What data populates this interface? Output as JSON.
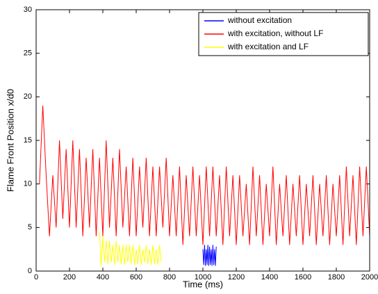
{
  "chart_data": {
    "type": "line",
    "xlabel": "Time (ms)",
    "ylabel": "Flame Front Position x/d0",
    "xlim": [
      0,
      2000
    ],
    "xticks": [
      0,
      200,
      400,
      600,
      800,
      1000,
      1200,
      1400,
      1600,
      1800,
      2000
    ],
    "ylim": [
      0,
      30
    ],
    "yticks": [
      0,
      5,
      10,
      15,
      20,
      25,
      30
    ],
    "legend": "upper-right",
    "series": [
      {
        "name": "without excitation",
        "color": "#0000ff",
        "x": [
          1000,
          1005,
          1010,
          1015,
          1020,
          1025,
          1030,
          1035,
          1040,
          1045,
          1050,
          1055,
          1060,
          1065,
          1070,
          1075,
          1080
        ],
        "values": [
          2.5,
          0.7,
          3,
          0.6,
          2.5,
          0.7,
          3,
          0.6,
          2.8,
          0.7,
          2.5,
          0.6,
          3,
          0.7,
          2.5,
          0.6,
          2.8
        ]
      },
      {
        "name": "with excitation, without LF",
        "color": "#ff0000",
        "x": [
          20,
          40,
          60,
          80,
          100,
          120,
          140,
          160,
          180,
          200,
          220,
          240,
          260,
          280,
          300,
          320,
          340,
          360,
          380,
          400,
          420,
          440,
          460,
          480,
          500,
          520,
          540,
          560,
          580,
          600,
          620,
          640,
          660,
          680,
          700,
          720,
          740,
          760,
          780,
          800,
          820,
          840,
          860,
          880,
          900,
          920,
          940,
          960,
          980,
          1000,
          1020,
          1040,
          1060,
          1080,
          1100,
          1120,
          1140,
          1160,
          1180,
          1200,
          1220,
          1240,
          1260,
          1280,
          1300,
          1320,
          1340,
          1360,
          1380,
          1400,
          1420,
          1440,
          1460,
          1480,
          1500,
          1520,
          1540,
          1560,
          1580,
          1600,
          1620,
          1640,
          1660,
          1680,
          1700,
          1720,
          1740,
          1760,
          1780,
          1800,
          1820,
          1840,
          1860,
          1880,
          1900,
          1920,
          1940,
          1960,
          1980,
          2000
        ],
        "values": [
          10,
          19,
          11,
          4,
          11,
          5,
          15,
          6,
          14,
          5,
          15,
          5,
          14,
          4,
          13,
          5,
          14,
          4,
          13,
          4,
          15,
          5,
          13,
          4,
          14,
          5,
          12,
          4,
          13,
          4,
          12,
          5,
          13,
          4,
          12,
          4,
          12,
          5,
          13,
          4,
          11,
          4,
          12,
          3,
          11,
          4,
          12,
          4,
          11,
          3,
          12,
          4,
          12,
          4,
          11,
          3,
          12,
          4,
          11,
          3,
          11,
          4,
          10,
          3,
          12,
          4,
          11,
          3,
          10,
          4,
          12,
          3,
          10,
          4,
          11,
          3,
          10,
          4,
          11,
          3,
          10,
          4,
          11,
          3,
          10,
          4,
          11,
          3,
          10,
          4,
          11,
          3,
          12,
          4,
          11,
          3,
          12,
          4,
          12,
          4
        ]
      },
      {
        "name": "with excitation and LF",
        "color": "#ffff00",
        "x": [
          380,
          390,
          400,
          410,
          420,
          430,
          440,
          450,
          460,
          470,
          480,
          490,
          500,
          510,
          520,
          530,
          540,
          550,
          560,
          570,
          580,
          590,
          600,
          610,
          620,
          630,
          640,
          650,
          660,
          670,
          680,
          690,
          700,
          710,
          720,
          730,
          740,
          750
        ],
        "values": [
          4.5,
          0.5,
          4,
          1,
          3.5,
          0.8,
          3.5,
          1,
          3,
          0.7,
          3.5,
          1,
          3,
          0.8,
          3,
          0.7,
          3,
          1,
          3,
          0.8,
          3,
          0.7,
          2.5,
          0.8,
          3,
          0.7,
          2.5,
          1,
          3,
          0.8,
          2.5,
          0.7,
          3,
          0.8,
          2.5,
          0.7,
          3,
          1
        ]
      }
    ]
  }
}
